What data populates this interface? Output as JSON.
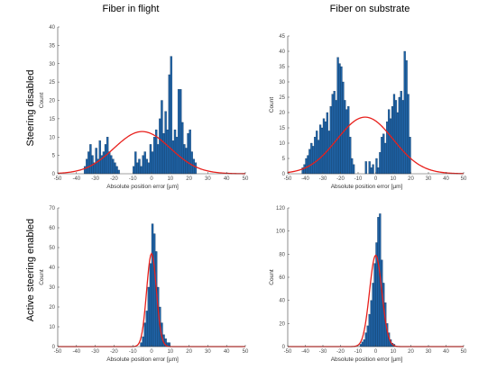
{
  "figure": {
    "col_titles": [
      "Fiber in flight",
      "Fiber on substrate"
    ],
    "row_labels": [
      "Steering disabled",
      "Active steering enabled"
    ]
  },
  "colors": {
    "bar": "#1f63a6",
    "bar_edge": "#0b2f55",
    "fit": "#e8201c"
  },
  "chart_data": [
    {
      "type": "bar",
      "panel": "top-left",
      "xlabel": "Absolute position error [µm]",
      "ylabel": "Count",
      "xlim": [
        -50,
        50
      ],
      "ylim": [
        0,
        40
      ],
      "xticks": [
        -50,
        -40,
        -30,
        -20,
        -10,
        0,
        10,
        20,
        30,
        40,
        50
      ],
      "yticks": [
        0,
        5,
        10,
        15,
        20,
        25,
        30,
        35,
        40
      ],
      "bin_width": 1,
      "bins_start": -36,
      "counts": [
        2,
        4,
        6,
        8,
        5,
        3,
        7,
        4,
        9,
        5,
        6,
        8,
        10,
        6,
        5,
        4,
        3,
        2,
        1,
        0,
        0,
        0,
        0,
        0,
        0,
        0,
        2,
        6,
        3,
        4,
        2,
        5,
        6,
        4,
        3,
        8,
        6,
        10,
        12,
        8,
        15,
        20,
        11,
        17,
        12,
        27,
        32,
        9,
        12,
        10,
        23,
        23,
        14,
        8,
        7,
        11,
        12,
        6,
        4,
        3
      ],
      "fit": {
        "type": "gaussian",
        "amplitude": 11.5,
        "mean": -5,
        "sigma": 15
      }
    },
    {
      "type": "bar",
      "panel": "top-right",
      "xlabel": "Absolute position error [µm]",
      "ylabel": "Count",
      "xlim": [
        -50,
        50
      ],
      "ylim": [
        0,
        45
      ],
      "xticks": [
        -50,
        -40,
        -30,
        -20,
        -10,
        0,
        10,
        20,
        30,
        40,
        50
      ],
      "yticks": [
        0,
        5,
        10,
        15,
        20,
        25,
        30,
        35,
        40,
        45
      ],
      "bin_width": 1,
      "bins_start": -42,
      "counts": [
        2,
        3,
        5,
        6,
        8,
        10,
        9,
        12,
        14,
        11,
        16,
        15,
        18,
        17,
        20,
        14,
        22,
        26,
        27,
        24,
        38,
        36,
        35,
        30,
        24,
        21,
        22,
        12,
        5,
        3,
        0,
        0,
        0,
        0,
        0,
        0,
        4,
        0,
        4,
        2,
        3,
        0,
        5,
        2,
        7,
        12,
        13,
        10,
        17,
        21,
        18,
        22,
        26,
        24,
        20,
        25,
        27,
        24,
        40,
        37,
        26,
        12
      ],
      "fit": {
        "type": "gaussian",
        "amplitude": 18.5,
        "mean": -6,
        "sigma": 16
      }
    },
    {
      "type": "bar",
      "panel": "bottom-left",
      "xlabel": "Absolute position error [µm]",
      "ylabel": "Count",
      "xlim": [
        -50,
        50
      ],
      "ylim": [
        0,
        70
      ],
      "xticks": [
        -50,
        -40,
        -30,
        -20,
        -10,
        0,
        10,
        20,
        30,
        40,
        50
      ],
      "yticks": [
        0,
        10,
        20,
        30,
        40,
        50,
        60,
        70
      ],
      "bin_width": 1,
      "bins_start": -6,
      "counts": [
        2,
        5,
        12,
        18,
        30,
        42,
        62,
        57,
        48,
        30,
        20,
        12,
        6,
        4,
        2,
        2
      ],
      "fit": {
        "type": "gaussian",
        "amplitude": 47,
        "mean": 0,
        "sigma": 2.6
      }
    },
    {
      "type": "bar",
      "panel": "bottom-right",
      "xlabel": "Absolute position error [µm]",
      "ylabel": "Count",
      "xlim": [
        -50,
        50
      ],
      "ylim": [
        0,
        120
      ],
      "xticks": [
        -50,
        -40,
        -30,
        -20,
        -10,
        0,
        10,
        20,
        30,
        40,
        50
      ],
      "yticks": [
        0,
        20,
        40,
        60,
        80,
        100,
        120
      ],
      "bin_width": 1,
      "bins_start": -9,
      "counts": [
        2,
        4,
        6,
        12,
        18,
        28,
        40,
        55,
        72,
        90,
        112,
        115,
        75,
        55,
        38,
        20,
        12,
        6,
        3,
        2
      ],
      "fit": {
        "type": "gaussian",
        "amplitude": 79,
        "mean": 0,
        "sigma": 3.5
      }
    }
  ]
}
